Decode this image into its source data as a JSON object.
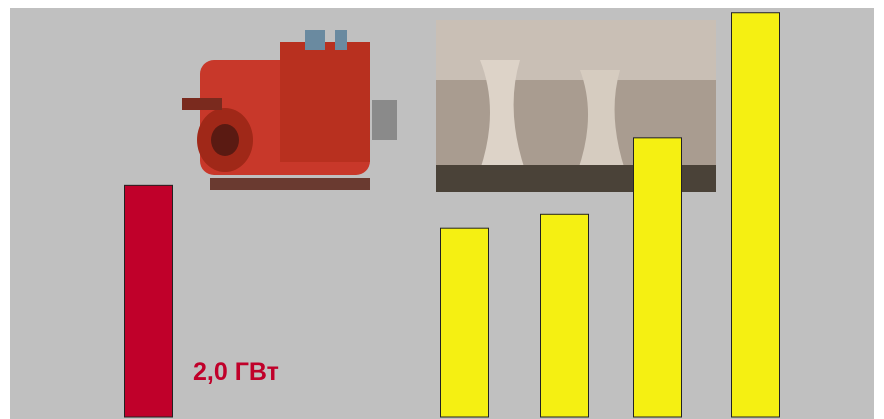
{
  "chart_data": {
    "type": "bar",
    "categories": [
      null,
      null,
      null,
      null,
      null
    ],
    "values": [
      2.0,
      1.63,
      1.75,
      2.41,
      3.49
    ],
    "value_labels": [
      "2,0 ГВт",
      null,
      null,
      null,
      null
    ],
    "colors": [
      "#c0002a",
      "#f5f012",
      "#f5f012",
      "#f5f012",
      "#f5f012"
    ],
    "ylim": [
      0,
      3.6
    ]
  }
}
